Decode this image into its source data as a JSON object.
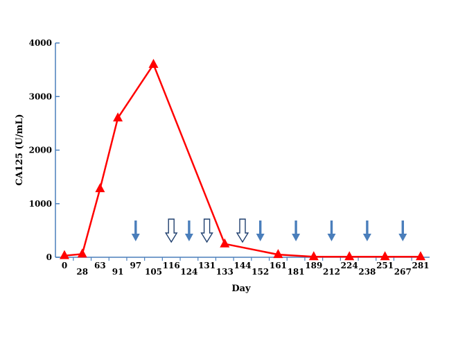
{
  "chart_data": {
    "type": "line",
    "xlabel": "Day",
    "ylabel": "CA125 (U/mL)",
    "ylim": [
      0,
      4000
    ],
    "yticks": [
      0,
      1000,
      2000,
      3000,
      4000
    ],
    "x_categories": [
      "0",
      "28",
      "63",
      "91",
      "97",
      "105",
      "116",
      "124",
      "131",
      "133",
      "144",
      "152",
      "161",
      "181",
      "189",
      "212",
      "224",
      "238",
      "251",
      "267",
      "281"
    ],
    "series": [
      {
        "marker": "triangle",
        "color": "#ff0000",
        "points": [
          {
            "x": "0",
            "y": 30
          },
          {
            "x": "28",
            "y": 60
          },
          {
            "x": "63",
            "y": 1280
          },
          {
            "x": "91",
            "y": 2600
          },
          {
            "x": "105",
            "y": 3600
          },
          {
            "x": "133",
            "y": 250
          },
          {
            "x": "161",
            "y": 50
          },
          {
            "x": "189",
            "y": 10
          },
          {
            "x": "224",
            "y": 10
          },
          {
            "x": "251",
            "y": 10
          },
          {
            "x": "281",
            "y": 10
          }
        ]
      }
    ],
    "annotations": {
      "filled_arrow_color": "#4a7ebb",
      "filled_arrows_at_day": [
        "97",
        "124",
        "152",
        "181",
        "212",
        "238",
        "267"
      ],
      "hollow_arrows_at_day": [
        "116",
        "131",
        "144"
      ]
    },
    "axis_color": "#4a7ebb",
    "grid": false
  }
}
